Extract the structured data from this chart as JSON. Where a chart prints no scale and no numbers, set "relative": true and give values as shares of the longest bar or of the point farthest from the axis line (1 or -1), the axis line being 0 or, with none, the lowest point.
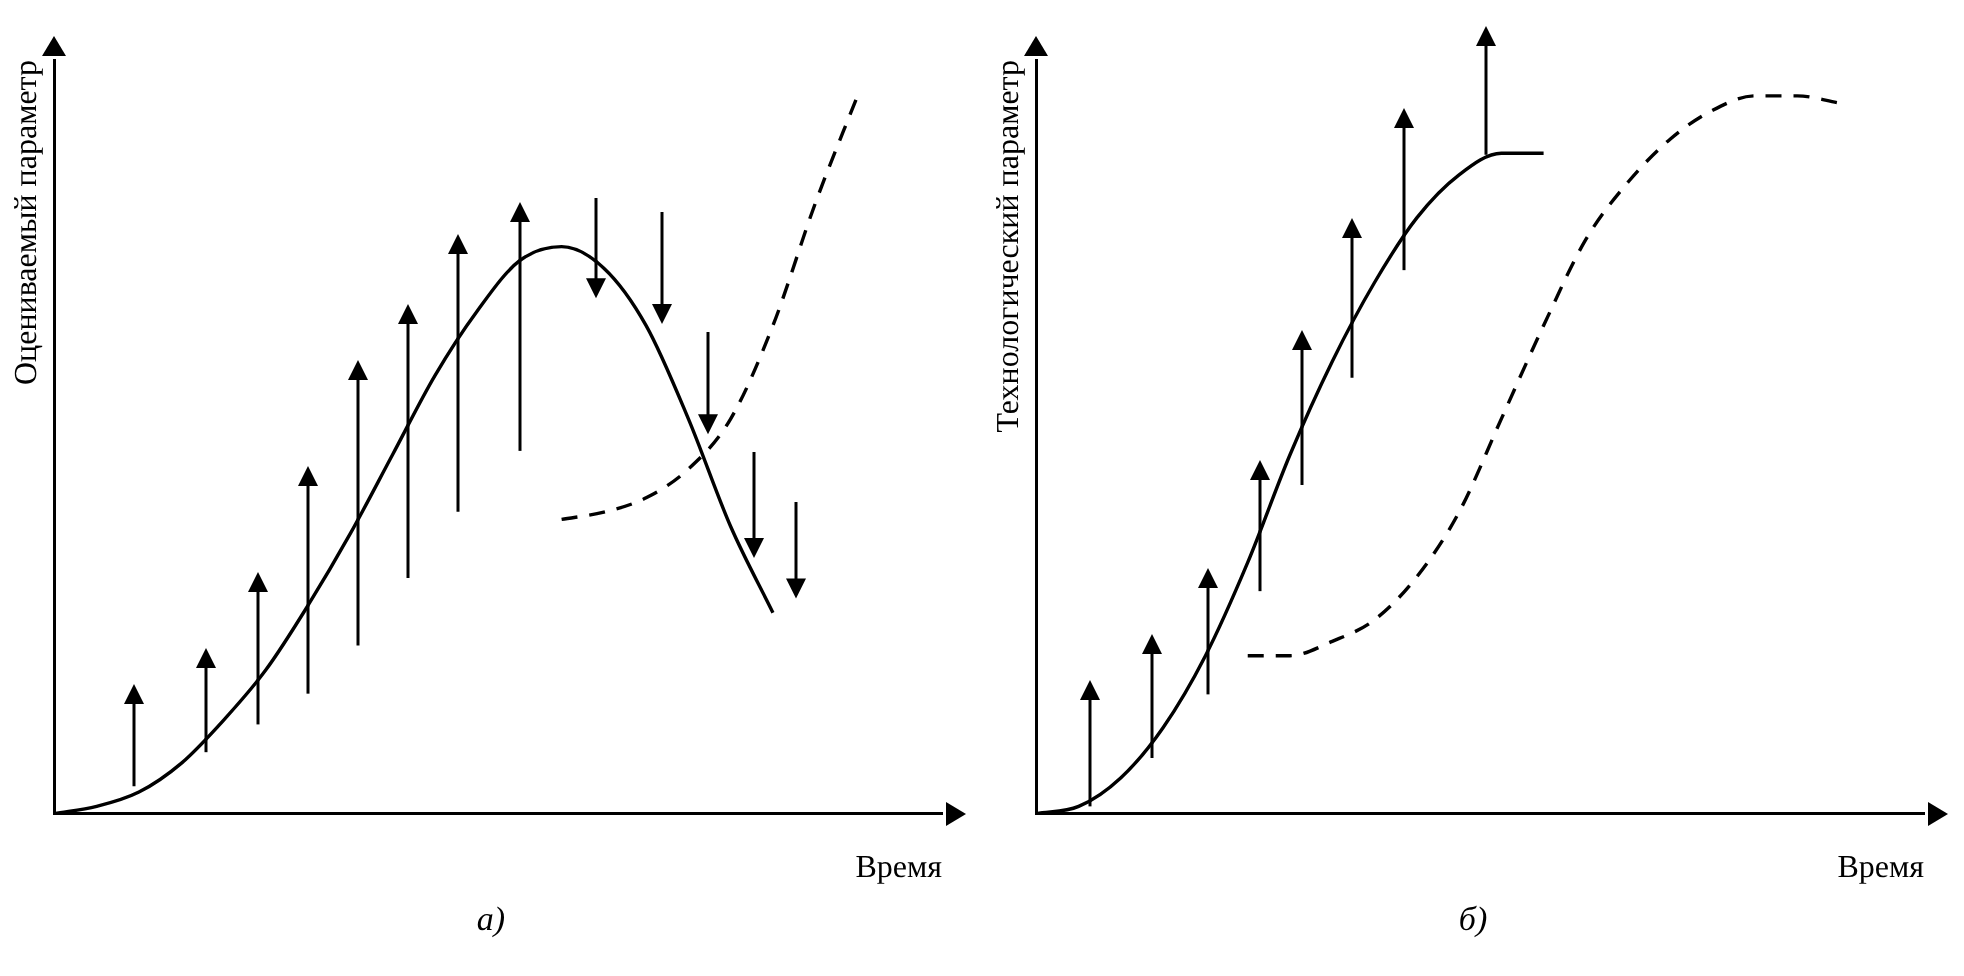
{
  "chart_data": [
    {
      "type": "line",
      "relative": true,
      "ylabel": "Оцениваемый параметр",
      "xlabel": "Время",
      "annotations": [
        "а)"
      ],
      "categories": [
        null,
        null,
        null,
        null,
        null,
        null,
        null,
        null,
        null,
        null,
        null,
        null,
        null,
        null,
        null,
        null,
        null,
        null,
        null,
        null,
        null
      ],
      "series": [
        {
          "color": "#000000",
          "values": [
            0,
            0.01,
            0.03,
            0.07,
            0.13,
            0.2,
            0.29,
            0.39,
            0.5,
            0.61,
            0.7,
            0.77,
            0.79,
            0.76,
            0.68,
            0.55,
            0.4,
            0.28,
            null,
            null,
            null
          ]
        },
        {
          "color": "#000000",
          "line_style": "dashed",
          "values": [
            null,
            null,
            null,
            null,
            null,
            null,
            null,
            null,
            null,
            null,
            null,
            null,
            0.41,
            0.42,
            0.44,
            0.48,
            0.55,
            0.68,
            0.85,
            1.0,
            null
          ]
        }
      ]
    },
    {
      "type": "line",
      "relative": true,
      "ylabel": "Технологический параметр",
      "xlabel": "Время",
      "annotations": [
        "б)"
      ],
      "categories": [
        null,
        null,
        null,
        null,
        null,
        null,
        null,
        null,
        null,
        null,
        null,
        null,
        null,
        null,
        null,
        null,
        null,
        null,
        null,
        null,
        null
      ],
      "series": [
        {
          "color": "#000000",
          "values": [
            0,
            0.01,
            0.05,
            0.12,
            0.22,
            0.35,
            0.5,
            0.63,
            0.74,
            0.83,
            0.89,
            0.92,
            0.92,
            null,
            null,
            null,
            null,
            null,
            null,
            null,
            null
          ]
        },
        {
          "color": "#000000",
          "line_style": "dashed",
          "values": [
            null,
            null,
            null,
            null,
            null,
            0.22,
            0.22,
            0.24,
            0.27,
            0.33,
            0.42,
            0.55,
            0.68,
            0.8,
            0.88,
            0.94,
            0.98,
            1.0,
            1.0,
            0.99,
            null
          ]
        }
      ]
    }
  ]
}
